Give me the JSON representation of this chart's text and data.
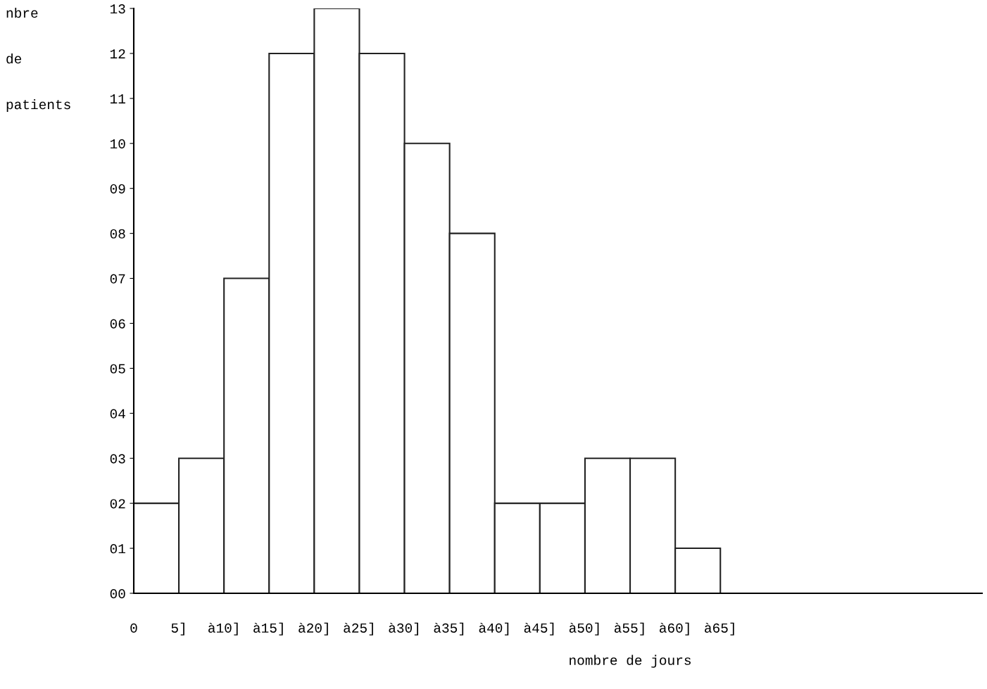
{
  "chart_data": {
    "type": "histogram",
    "xlabel": "nombre de jours",
    "ylabel": "nbre de patients",
    "bins": [
      0,
      5,
      10,
      15,
      20,
      25,
      30,
      35,
      40,
      45,
      50,
      55,
      60,
      65
    ],
    "values": [
      2,
      3,
      7,
      12,
      13,
      12,
      10,
      8,
      2,
      2,
      3,
      3,
      1
    ],
    "color": "#ffffff",
    "xlim": [
      0,
      94
    ],
    "xticks": [
      {
        "value": 0,
        "label": "0"
      },
      {
        "value": 5,
        "label": "5]"
      },
      {
        "value": 10,
        "label": "à10]"
      },
      {
        "value": 15,
        "label": "à15]"
      },
      {
        "value": 20,
        "label": "à20]"
      },
      {
        "value": 25,
        "label": "à25]"
      },
      {
        "value": 30,
        "label": "à30]"
      },
      {
        "value": 35,
        "label": "à35]"
      },
      {
        "value": 40,
        "label": "à40]"
      },
      {
        "value": 45,
        "label": "à45]"
      },
      {
        "value": 50,
        "label": "à50]"
      },
      {
        "value": 55,
        "label": "à55]"
      },
      {
        "value": 60,
        "label": "à60]"
      },
      {
        "value": 65,
        "label": "à65]"
      }
    ],
    "ylim": [
      0,
      13
    ],
    "yticks": [
      {
        "value": 0,
        "label": "00"
      },
      {
        "value": 1,
        "label": "01"
      },
      {
        "value": 2,
        "label": "02"
      },
      {
        "value": 3,
        "label": "03"
      },
      {
        "value": 4,
        "label": "04"
      },
      {
        "value": 5,
        "label": "05"
      },
      {
        "value": 6,
        "label": "06"
      },
      {
        "value": 7,
        "label": "07"
      },
      {
        "value": 8,
        "label": "08"
      },
      {
        "value": 9,
        "label": "09"
      },
      {
        "value": 10,
        "label": "10"
      },
      {
        "value": 11,
        "label": "11"
      },
      {
        "value": 12,
        "label": "12"
      },
      {
        "value": 13,
        "label": "13"
      }
    ],
    "grid": false
  }
}
